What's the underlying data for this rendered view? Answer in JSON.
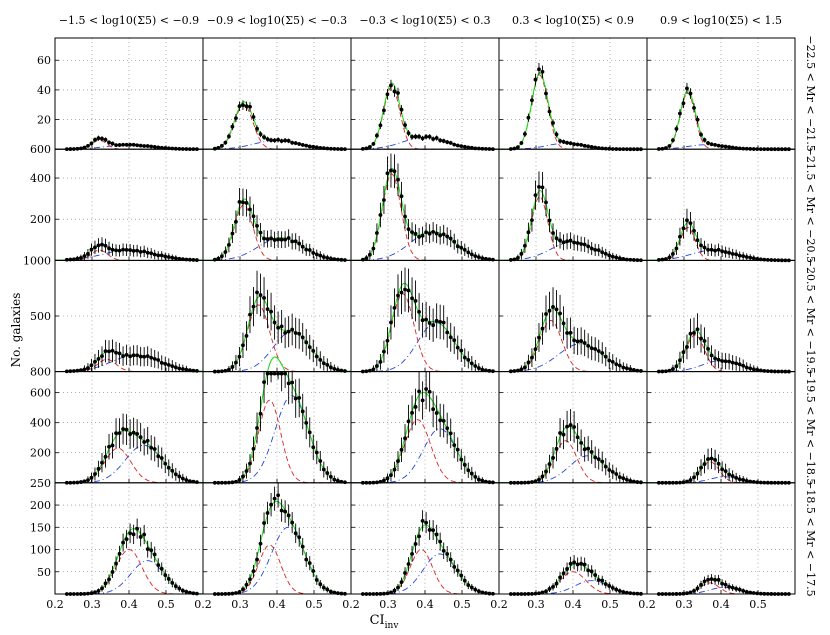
{
  "figure": {
    "xlabel": "CI",
    "xlabel_sub": "inv",
    "ylabel": "No. galaxies"
  },
  "column_titles": [
    "−1.5 < log10(Σ5) < −0.9",
    "−0.9 < log10(Σ5) < −0.3",
    "−0.3 < log10(Σ5) < 0.3",
    "0.3 < log10(Σ5) < 0.9",
    "0.9 < log10(Σ5) < 1.5"
  ],
  "row_titles": [
    "−22.5 < Mr < −21.5",
    "−21.5 < Mr < −20.5",
    "−20.5 < Mr < −19.5",
    "−19.5 < Mr < −18.5",
    "−18.5 < Mr < −17.5"
  ],
  "colors": {
    "data": "#000000",
    "total_fit": "#22dd22",
    "early_component": "#dd2222",
    "late_component": "#2244dd",
    "grid": "#777777"
  },
  "chart_data": {
    "type": "scatter",
    "description_of_layout": "5x5 grid of histogram panels with error bars and two-component fits",
    "x_range": [
      0.2,
      0.6
    ],
    "x_ticks": [
      0.2,
      0.3,
      0.4,
      0.5
    ],
    "rows": [
      {
        "row": "−22.5 < Mr < −21.5",
        "ylim": [
          0,
          75
        ],
        "yticks": [
          20,
          40,
          60
        ],
        "top_label": "600"
      },
      {
        "row": "−21.5 < Mr < −20.5",
        "ylim": [
          0,
          540
        ],
        "yticks": [
          200,
          400
        ],
        "top_label": "1000"
      },
      {
        "row": "−20.5 < Mr < −19.5",
        "ylim": [
          0,
          1000
        ],
        "yticks": [
          500
        ],
        "top_label": "800"
      },
      {
        "row": "−19.5 < Mr < −18.5",
        "ylim": [
          0,
          740
        ],
        "yticks": [
          200,
          400,
          600
        ],
        "top_label": "250"
      },
      {
        "row": "−18.5 < Mr < −17.5",
        "ylim": [
          0,
          250
        ],
        "yticks": [
          50,
          100,
          150,
          200
        ],
        "top_label": ""
      }
    ],
    "panels": [
      [
        {
          "early": [
            0.32,
            0.02,
            6
          ],
          "late": [
            0.4,
            0.06,
            3
          ]
        },
        {
          "early": [
            0.31,
            0.025,
            30
          ],
          "late": [
            0.4,
            0.06,
            6
          ]
        },
        {
          "early": [
            0.31,
            0.022,
            42
          ],
          "late": [
            0.4,
            0.06,
            8
          ]
        },
        {
          "early": [
            0.31,
            0.022,
            50
          ],
          "late": [
            0.38,
            0.05,
            4
          ]
        },
        {
          "early": [
            0.31,
            0.02,
            38
          ],
          "late": [
            0.36,
            0.05,
            3
          ]
        }
      ],
      [
        {
          "early": [
            0.32,
            0.022,
            50
          ],
          "late": [
            0.4,
            0.07,
            50
          ]
        },
        {
          "early": [
            0.31,
            0.025,
            270
          ],
          "late": [
            0.41,
            0.06,
            110
          ]
        },
        {
          "early": [
            0.31,
            0.025,
            420
          ],
          "late": [
            0.42,
            0.06,
            140
          ]
        },
        {
          "early": [
            0.31,
            0.022,
            310
          ],
          "late": [
            0.4,
            0.06,
            90
          ]
        },
        {
          "early": [
            0.31,
            0.02,
            160
          ],
          "late": [
            0.38,
            0.06,
            50
          ]
        }
      ],
      [
        {
          "early": [
            0.34,
            0.025,
            110
          ],
          "late": [
            0.42,
            0.065,
            150
          ]
        },
        {
          "early": [
            0.35,
            0.03,
            600
          ],
          "late": [
            0.44,
            0.05,
            360
          ]
        },
        {
          "early": [
            0.34,
            0.03,
            700
          ],
          "late": [
            0.43,
            0.05,
            440
          ]
        },
        {
          "early": [
            0.34,
            0.03,
            460
          ],
          "late": [
            0.42,
            0.06,
            250
          ]
        },
        {
          "early": [
            0.33,
            0.025,
            330
          ],
          "late": [
            0.4,
            0.05,
            100
          ]
        }
      ],
      [
        {
          "early": [
            0.37,
            0.035,
            230
          ],
          "late": [
            0.44,
            0.05,
            250
          ]
        },
        {
          "early": [
            0.38,
            0.03,
            550
          ],
          "late": [
            0.44,
            0.045,
            580
          ]
        },
        {
          "early": [
            0.38,
            0.035,
            420
          ],
          "late": [
            0.44,
            0.045,
            360
          ]
        },
        {
          "early": [
            0.38,
            0.03,
            280
          ],
          "late": [
            0.44,
            0.05,
            180
          ]
        },
        {
          "early": [
            0.37,
            0.025,
            140
          ],
          "late": [
            0.41,
            0.04,
            40
          ]
        }
      ],
      [
        {
          "early": [
            0.4,
            0.035,
            100
          ],
          "late": [
            0.45,
            0.045,
            75
          ]
        },
        {
          "early": [
            0.38,
            0.03,
            110
          ],
          "late": [
            0.43,
            0.045,
            150
          ]
        },
        {
          "early": [
            0.39,
            0.03,
            100
          ],
          "late": [
            0.44,
            0.045,
            90
          ]
        },
        {
          "early": [
            0.4,
            0.035,
            50
          ],
          "late": [
            0.45,
            0.045,
            30
          ]
        },
        {
          "early": [
            0.37,
            0.025,
            25
          ],
          "late": [
            0.41,
            0.04,
            15
          ]
        }
      ]
    ]
  }
}
